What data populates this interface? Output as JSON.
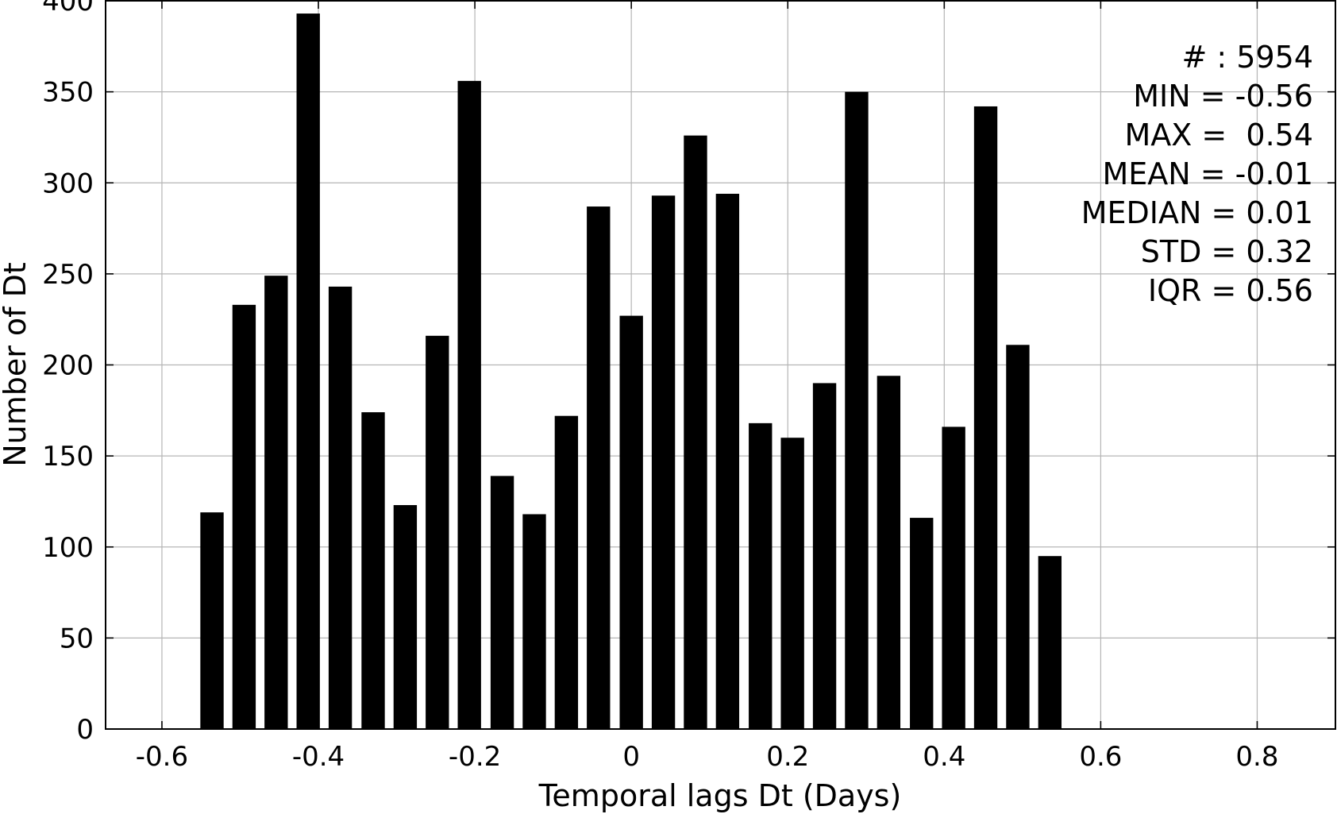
{
  "chart_data": {
    "type": "bar",
    "title": "",
    "xlabel": "Temporal lags Dt (Days)",
    "ylabel": "Number of Dt",
    "xlim": [
      -0.672,
      0.9
    ],
    "ylim": [
      0,
      400
    ],
    "bar_width": 0.0298,
    "bar_color": "#000000",
    "grid": true,
    "legend": "none",
    "x": [
      -0.536,
      -0.495,
      -0.454,
      -0.413,
      -0.372,
      -0.33,
      -0.289,
      -0.248,
      -0.207,
      -0.165,
      -0.124,
      -0.083,
      -0.042,
      0.0,
      0.041,
      0.082,
      0.123,
      0.165,
      0.206,
      0.247,
      0.288,
      0.329,
      0.371,
      0.412,
      0.453,
      0.494,
      0.535
    ],
    "values": [
      119,
      233,
      249,
      393,
      243,
      174,
      123,
      216,
      356,
      139,
      118,
      172,
      287,
      227,
      293,
      326,
      294,
      168,
      160,
      190,
      350,
      194,
      116,
      166,
      342,
      211,
      95
    ],
    "xticks": [
      {
        "value": -0.6,
        "label": "-0.6"
      },
      {
        "value": -0.4,
        "label": "-0.4"
      },
      {
        "value": -0.2,
        "label": "-0.2"
      },
      {
        "value": 0.0,
        "label": "0"
      },
      {
        "value": 0.2,
        "label": "0.2"
      },
      {
        "value": 0.4,
        "label": "0.4"
      },
      {
        "value": 0.6,
        "label": "0.6"
      },
      {
        "value": 0.8,
        "label": "0.8"
      }
    ],
    "yticks": [
      {
        "value": 0,
        "label": "0"
      },
      {
        "value": 50,
        "label": "50"
      },
      {
        "value": 100,
        "label": "100"
      },
      {
        "value": 150,
        "label": "150"
      },
      {
        "value": 200,
        "label": "200"
      },
      {
        "value": 250,
        "label": "250"
      },
      {
        "value": 300,
        "label": "300"
      },
      {
        "value": 350,
        "label": "350"
      },
      {
        "value": 400,
        "label": "400"
      }
    ],
    "annotations": [
      "# : 5954",
      "MIN = -0.56",
      "MAX =  0.54",
      "MEAN = -0.01",
      "MEDIAN = 0.01",
      "STD = 0.32",
      "IQR = 0.56"
    ],
    "annotation_placement": "top-right"
  }
}
